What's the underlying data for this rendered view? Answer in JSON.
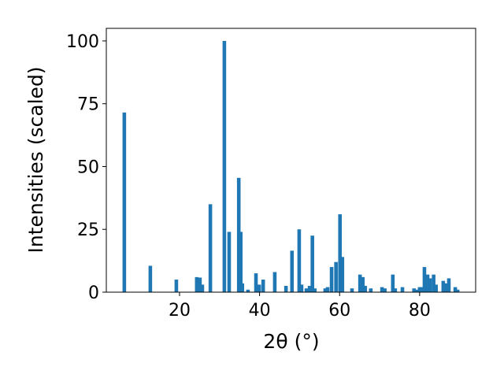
{
  "chart_data": {
    "type": "bar",
    "xlabel": "2θ (°)",
    "ylabel": "Intensities (scaled)",
    "color": "#1f77b4",
    "x": [
      6.2,
      12.7,
      19.2,
      24.3,
      25.1,
      25.7,
      27.7,
      31.2,
      32.4,
      34.8,
      35.3,
      35.7,
      37.1,
      39.1,
      39.9,
      40.9,
      43.8,
      46.6,
      48.1,
      49.9,
      50.5,
      51.7,
      52.5,
      53.2,
      53.8,
      56.4,
      57.0,
      58.0,
      59.1,
      60.1,
      60.7,
      63.1,
      65.1,
      65.8,
      66.4,
      67.8,
      70.6,
      71.3,
      73.3,
      73.9,
      75.7,
      78.6,
      79.2,
      80.0,
      80.6,
      81.2,
      82.0,
      82.6,
      83.5,
      84.1,
      85.9,
      86.5,
      87.3,
      88.9,
      89.5
    ],
    "values": [
      71.5,
      10.5,
      5,
      6,
      5.8,
      3,
      35,
      100,
      24,
      45.5,
      24,
      3.5,
      1,
      7.5,
      3,
      5,
      8,
      2.5,
      16.5,
      25,
      3,
      1.5,
      2.5,
      22.5,
      1.5,
      1.5,
      2,
      10,
      12,
      31,
      14,
      1.5,
      7,
      6,
      2.5,
      1.5,
      2,
      1.5,
      7,
      1.5,
      2,
      1.5,
      1,
      2,
      2,
      10,
      7,
      5.5,
      7,
      3,
      4.5,
      3.5,
      5.5,
      2,
      1
    ],
    "xlim": [
      1.7,
      94
    ],
    "ylim": [
      0,
      105
    ],
    "xticks": [
      20,
      40,
      60,
      80
    ],
    "yticks": [
      0,
      25,
      50,
      75,
      100
    ]
  }
}
